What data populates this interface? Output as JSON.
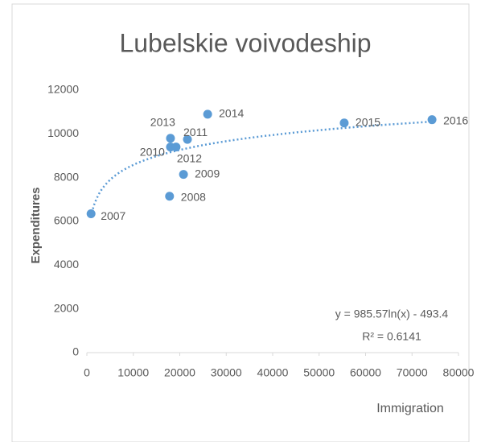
{
  "chart_data": {
    "type": "scatter",
    "title": "Lubelskie voivodeship",
    "x_label": "Immigration",
    "y_label": "Expenditures",
    "x": [
      900,
      17800,
      20800,
      18000,
      21650,
      19200,
      18000,
      26000,
      55400,
      74300
    ],
    "values": [
      6350,
      7150,
      8150,
      9400,
      9750,
      9400,
      9800,
      10900,
      10500,
      10650
    ],
    "labels": [
      "2007",
      "2008",
      "2009",
      "2010",
      "2011",
      "2012",
      "2013",
      "2014",
      "2015",
      "2016"
    ],
    "color": "#5b9bd5",
    "xlim": [
      0,
      80000
    ],
    "xticks": [
      0,
      10000,
      20000,
      30000,
      40000,
      50000,
      60000,
      70000,
      80000
    ],
    "ylim": [
      0,
      12000
    ],
    "yticks": [
      0,
      2000,
      4000,
      6000,
      8000,
      10000,
      12000
    ],
    "grid": false,
    "trendline": {
      "type": "log",
      "a": 985.57,
      "b": -493.4,
      "label": "y = 985.57ln(x) - 493.4",
      "r2_label": "R² = 0.6141"
    }
  }
}
